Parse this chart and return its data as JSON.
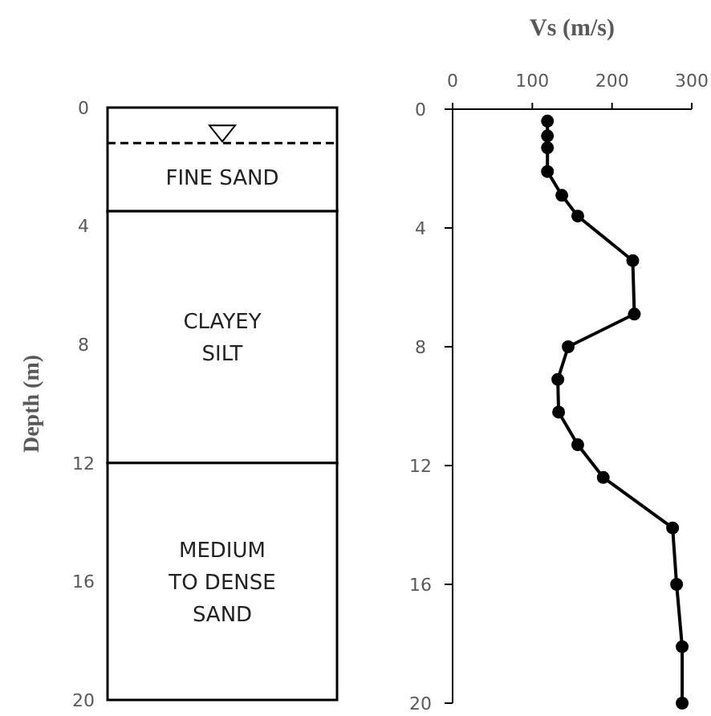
{
  "chart_data": [
    {
      "type": "bar",
      "stacked": true,
      "ylabel": "Depth (m)",
      "ylim": [
        20,
        0
      ],
      "yticks": [
        0,
        4,
        8,
        12,
        16,
        20
      ],
      "categories": [
        null
      ],
      "series": [
        {
          "name": "FINE SAND",
          "color": "#ffffff",
          "values": [
            3.5
          ]
        },
        {
          "name": "CLAYEY SILT",
          "color": "#ffffff",
          "values": [
            8.5
          ]
        },
        {
          "name": "MEDIUM TO DENSE SAND",
          "color": "#ffffff",
          "values": [
            8
          ]
        }
      ],
      "ref_lines": [
        {
          "axis": "y",
          "value": 1.2,
          "line_style": "dashed"
        }
      ]
    },
    {
      "type": "line",
      "xlabel": "Vs (m/s)",
      "xlim": [
        0,
        300
      ],
      "xticks": [
        0,
        100,
        200,
        300
      ],
      "ylim": [
        20,
        0
      ],
      "yticks": [
        0,
        4,
        8,
        12,
        16,
        20
      ],
      "marker": "circle",
      "line_style": "solid",
      "series": [
        {
          "color": "#000000",
          "x": [
            119,
            119,
            119,
            119,
            137,
            157,
            226,
            228,
            145,
            132,
            133,
            157,
            189,
            276,
            281,
            288,
            288
          ],
          "values": [
            0.4,
            0.9,
            1.3,
            2.1,
            2.9,
            3.6,
            5.1,
            6.9,
            8.0,
            9.1,
            10.2,
            11.3,
            12.4,
            14.1,
            16.0,
            18.1,
            20.0
          ]
        }
      ]
    }
  ]
}
